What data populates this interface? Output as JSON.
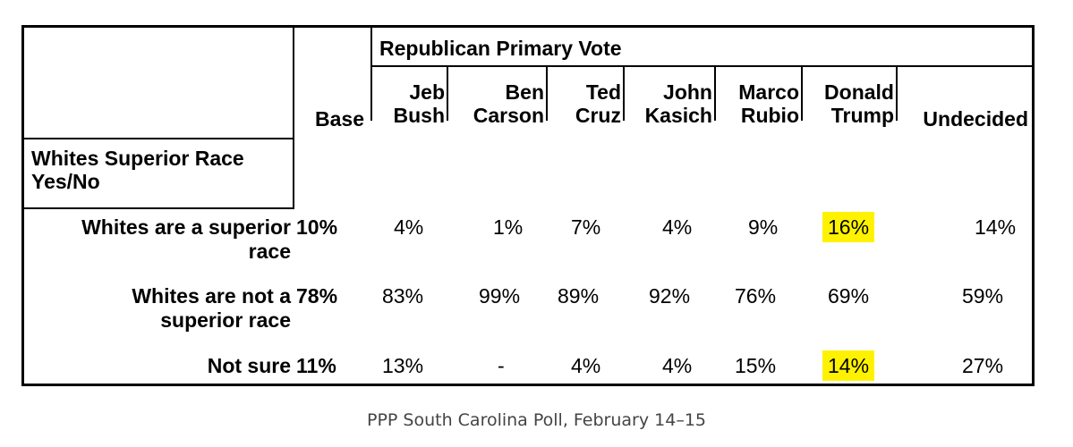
{
  "table": {
    "group_header": "Republican Primary Vote",
    "columns": [
      {
        "line1": "",
        "line2": "Base"
      },
      {
        "line1": "Jeb",
        "line2": "Bush"
      },
      {
        "line1": "Ben",
        "line2": "Carson"
      },
      {
        "line1": "Ted",
        "line2": "Cruz"
      },
      {
        "line1": "John",
        "line2": "Kasich"
      },
      {
        "line1": "Marco",
        "line2": "Rubio"
      },
      {
        "line1": "Donald",
        "line2": "Trump"
      },
      {
        "line1": "",
        "line2": "Undecided"
      }
    ],
    "question": "Whites Superior Race Yes/No",
    "question_line1": "Whites Superior Race",
    "question_line2": "Yes/No",
    "rows": [
      {
        "label_line1": "Whites are a superior",
        "label_line2": "race",
        "values": [
          "10%",
          "4%",
          "1%",
          "7%",
          "4%",
          "9%",
          "16%",
          "14%"
        ],
        "highlight_index": 6
      },
      {
        "label_line1": "Whites are not a",
        "label_line2": "superior race",
        "values": [
          "78%",
          "83%",
          "99%",
          "89%",
          "92%",
          "76%",
          "69%",
          "59%"
        ],
        "highlight_index": null
      },
      {
        "label_line1": "Not sure",
        "label_line2": "",
        "values": [
          "11%",
          "13%",
          "-",
          "4%",
          "4%",
          "15%",
          "14%",
          "27%"
        ],
        "highlight_index": 6
      }
    ],
    "highlight_color": "#fff200"
  },
  "caption": "PPP South Carolina Poll, February 14–15"
}
